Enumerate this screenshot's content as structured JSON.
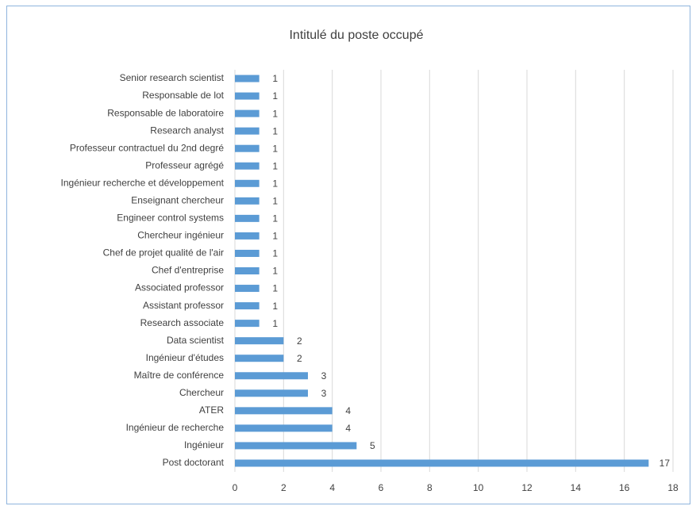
{
  "chart_data": {
    "type": "hbar",
    "title": "Intitulé du poste occupé",
    "categories": [
      "Senior research scientist",
      "Responsable de lot",
      "Responsable de laboratoire",
      "Research analyst",
      "Professeur contractuel du 2nd degré",
      "Professeur agrégé",
      "Ingénieur recherche et développement",
      "Enseignant chercheur",
      "Engineer control systems",
      "Chercheur ingénieur",
      "Chef de projet qualité de l'air",
      "Chef d'entreprise",
      "Associated professor",
      "Assistant professor",
      "Research associate",
      "Data scientist",
      "Ingénieur d'études",
      "Maître de conférence",
      "Chercheur",
      "ATER",
      "Ingénieur de recherche",
      "Ingénieur",
      "Post doctorant"
    ],
    "values": [
      1,
      1,
      1,
      1,
      1,
      1,
      1,
      1,
      1,
      1,
      1,
      1,
      1,
      1,
      1,
      2,
      2,
      3,
      3,
      4,
      4,
      5,
      17
    ],
    "color": "#5b9bd5",
    "xlim": [
      0,
      18
    ],
    "xticks": [
      0,
      2,
      4,
      6,
      8,
      10,
      12,
      14,
      16,
      18
    ],
    "grid": true
  }
}
